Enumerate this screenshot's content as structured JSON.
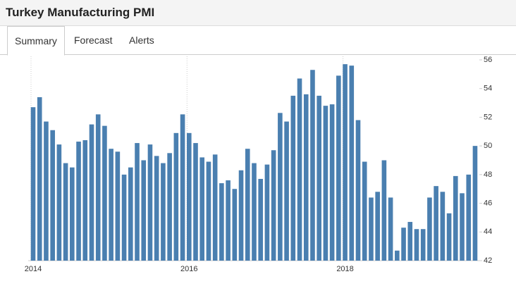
{
  "header": {
    "title": "Turkey Manufacturing PMI"
  },
  "tabs": [
    "Summary",
    "Forecast",
    "Alerts"
  ],
  "chart_data": {
    "type": "bar",
    "categories": [
      "2014",
      null,
      null,
      null,
      null,
      null,
      null,
      null,
      null,
      null,
      null,
      null,
      null,
      null,
      null,
      null,
      null,
      null,
      null,
      null,
      null,
      null,
      null,
      null,
      "2016",
      null,
      null,
      null,
      null,
      null,
      null,
      null,
      null,
      null,
      null,
      null,
      null,
      null,
      null,
      null,
      null,
      null,
      null,
      null,
      null,
      null,
      null,
      null,
      "2018",
      null,
      null,
      null,
      null,
      null,
      null,
      null,
      null,
      null,
      null,
      null,
      null,
      null,
      null,
      null,
      null,
      null,
      null,
      null,
      null
    ],
    "values": [
      52.7,
      53.4,
      51.7,
      51.1,
      50.1,
      48.8,
      48.5,
      50.3,
      50.4,
      51.5,
      52.2,
      51.4,
      49.8,
      49.6,
      48.0,
      48.5,
      50.2,
      49.0,
      50.1,
      49.3,
      48.8,
      49.5,
      50.9,
      52.2,
      50.9,
      50.2,
      49.2,
      48.9,
      49.4,
      47.4,
      47.6,
      47.0,
      48.3,
      49.8,
      48.8,
      47.7,
      48.7,
      49.7,
      52.3,
      51.7,
      53.5,
      54.7,
      53.6,
      55.3,
      53.5,
      52.8,
      52.9,
      54.9,
      55.7,
      55.6,
      51.8,
      48.9,
      46.4,
      46.8,
      49.0,
      46.4,
      42.7,
      44.3,
      44.7,
      44.2,
      44.2,
      46.4,
      47.2,
      46.8,
      45.3,
      47.9,
      46.7,
      48.0,
      50.0
    ],
    "color": "#4a7fb0",
    "ylim": [
      42,
      56
    ],
    "yticks": [
      42,
      44,
      46,
      48,
      50,
      52,
      54,
      56
    ],
    "grid": true
  }
}
